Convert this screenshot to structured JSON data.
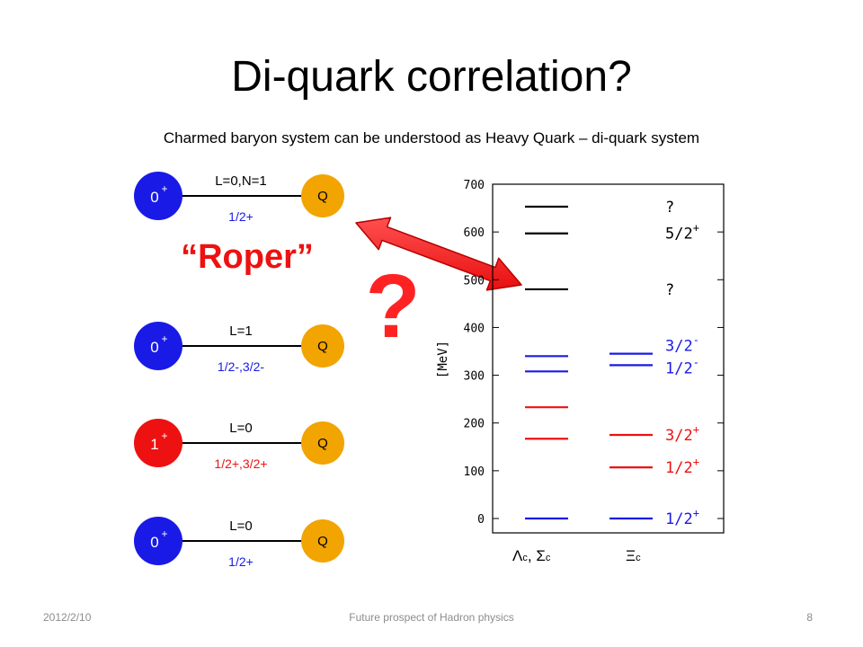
{
  "slide": {
    "title": "Di-quark correlation?",
    "subtitle": "Charmed baryon system can be understood as Heavy Quark – di-quark system",
    "roper_label": "“Roper”",
    "question_mark": "?"
  },
  "configs": [
    {
      "diquark": "0",
      "parity": "+",
      "diquark_color": "#1a1ae6",
      "orbital": "L=0,N=1",
      "jp": "1/2+",
      "quark": "Q"
    },
    {
      "diquark": "0",
      "parity": "+",
      "diquark_color": "#1a1ae6",
      "orbital": "L=1",
      "jp": "1/2-,3/2-",
      "quark": "Q"
    },
    {
      "diquark": "1",
      "parity": "+",
      "diquark_color": "#ee1111",
      "orbital": "L=0",
      "jp": "1/2+,3/2+",
      "quark": "Q"
    },
    {
      "diquark": "0",
      "parity": "+",
      "diquark_color": "#1a1ae6",
      "orbital": "L=0",
      "jp": "1/2+",
      "quark": "Q"
    }
  ],
  "colors": {
    "quark": "#f2a400",
    "arrow": "#ff2222",
    "roper": "#ee1111",
    "blue_level": "#1a1ae6",
    "red_level": "#ee1111"
  },
  "chart_data": {
    "type": "level-diagram",
    "ylabel": "[MeV]",
    "ylim": [
      -20,
      700
    ],
    "yticks": [
      0,
      100,
      200,
      300,
      400,
      500,
      600,
      700
    ],
    "ytick_labels": [
      "0",
      "100",
      "200",
      "300",
      "400",
      "500",
      "600",
      "700"
    ],
    "groups": [
      {
        "label_main": "Λ",
        "label_sub": "c",
        "label_sep": ",",
        "label_main2": "Σ",
        "label_sub2": "c"
      },
      {
        "label_main": "Ξ",
        "label_sub": "c"
      }
    ],
    "levels": [
      {
        "group": 0,
        "value": 0,
        "color": "#1a1ae6"
      },
      {
        "group": 0,
        "value": 167,
        "color": "#ee1111"
      },
      {
        "group": 0,
        "value": 233,
        "color": "#ee1111"
      },
      {
        "group": 0,
        "value": 308,
        "color": "#1a1ae6"
      },
      {
        "group": 0,
        "value": 340,
        "color": "#1a1ae6"
      },
      {
        "group": 0,
        "value": 480,
        "color": "#000000"
      },
      {
        "group": 0,
        "value": 597,
        "color": "#000000"
      },
      {
        "group": 0,
        "value": 653,
        "color": "#000000"
      },
      {
        "group": 1,
        "value": 0,
        "color": "#1a1ae6"
      },
      {
        "group": 1,
        "value": 107,
        "color": "#ee1111"
      },
      {
        "group": 1,
        "value": 175,
        "color": "#ee1111"
      },
      {
        "group": 1,
        "value": 321,
        "color": "#1a1ae6"
      },
      {
        "group": 1,
        "value": 345,
        "color": "#1a1ae6"
      }
    ],
    "annotations": [
      {
        "value": 653,
        "text": "?",
        "sup": "",
        "color": "#000000"
      },
      {
        "value": 597,
        "text": "5/2",
        "sup": "+",
        "color": "#000000"
      },
      {
        "value": 480,
        "text": "?",
        "sup": "",
        "color": "#000000"
      },
      {
        "value": 362,
        "text": "3/2",
        "sup": "-",
        "color": "#1a1ae6"
      },
      {
        "value": 315,
        "text": "1/2",
        "sup": "-",
        "color": "#1a1ae6"
      },
      {
        "value": 175,
        "text": "3/2",
        "sup": "+",
        "color": "#ee1111"
      },
      {
        "value": 107,
        "text": "1/2",
        "sup": "+",
        "color": "#ee1111"
      },
      {
        "value": 0,
        "text": "1/2",
        "sup": "+",
        "color": "#1a1ae6"
      }
    ]
  },
  "footer": {
    "date": "2012/2/10",
    "center": "Future prospect of Hadron physics",
    "page": "8"
  }
}
